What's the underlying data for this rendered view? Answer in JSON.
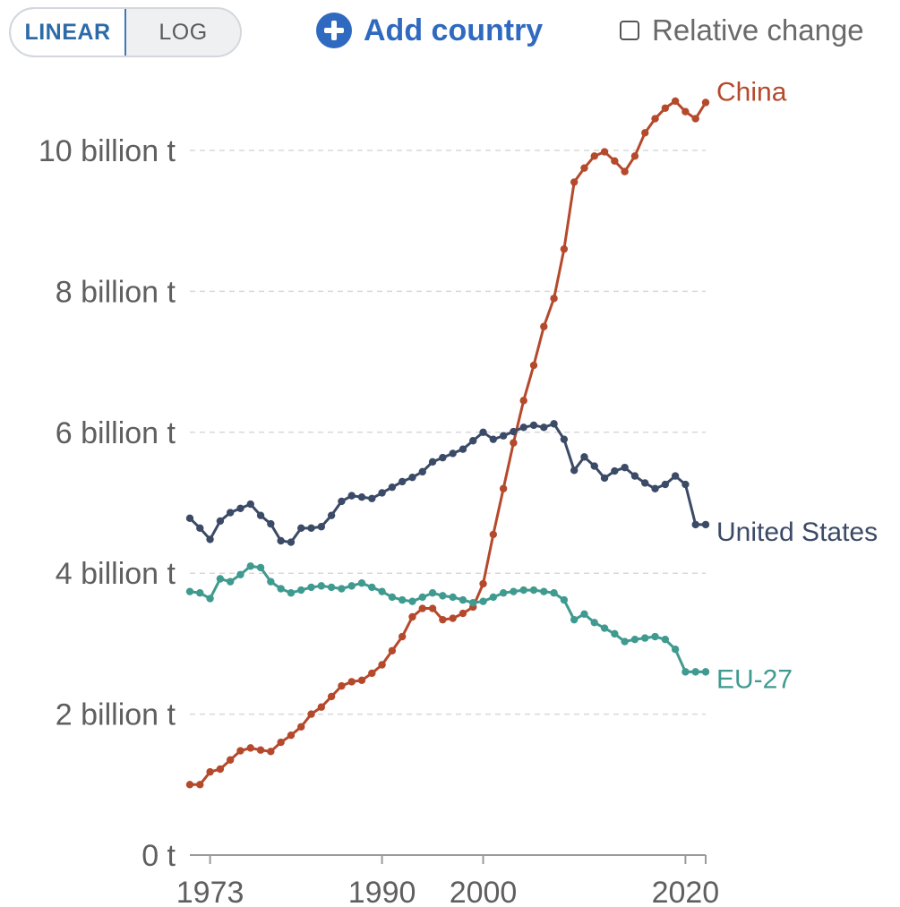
{
  "controls": {
    "linear_label": "LINEAR",
    "log_label": "LOG",
    "add_country_label": "Add country",
    "relative_change_label": "Relative change"
  },
  "colors": {
    "china": "#b5492c",
    "united_states": "#3b4a66",
    "eu27": "#3f9a8f",
    "grid": "#d8d8d8",
    "axis_text": "#5f5f5f",
    "accent": "#2f6ac0"
  },
  "chart_data": {
    "type": "line",
    "title": "",
    "xlabel": "",
    "ylabel": "",
    "scale": "linear",
    "grid": true,
    "xlim": [
      1971,
      2022
    ],
    "ylim": [
      0,
      10000000000
    ],
    "x_ticks": [
      1973,
      1990,
      2000,
      2020
    ],
    "x_tick_labels": [
      "1973",
      "1990",
      "2000",
      "2020"
    ],
    "y_ticks": [
      0,
      2000000000,
      4000000000,
      6000000000,
      8000000000,
      10000000000
    ],
    "y_tick_labels": [
      "0 t",
      "2 billion t",
      "4 billion t",
      "6 billion t",
      "8 billion t",
      "10 billion t"
    ],
    "x": [
      1971,
      1972,
      1973,
      1974,
      1975,
      1976,
      1977,
      1978,
      1979,
      1980,
      1981,
      1982,
      1983,
      1984,
      1985,
      1986,
      1987,
      1988,
      1989,
      1990,
      1991,
      1992,
      1993,
      1994,
      1995,
      1996,
      1997,
      1998,
      1999,
      2000,
      2001,
      2002,
      2003,
      2004,
      2005,
      2006,
      2007,
      2008,
      2009,
      2010,
      2011,
      2012,
      2013,
      2014,
      2015,
      2016,
      2017,
      2018,
      2019,
      2020,
      2021,
      2022
    ],
    "series": [
      {
        "name": "China",
        "color_key": "china",
        "values": [
          1.0,
          1.0,
          1.18,
          1.22,
          1.35,
          1.48,
          1.52,
          1.49,
          1.47,
          1.6,
          1.7,
          1.82,
          2.0,
          2.1,
          2.25,
          2.4,
          2.46,
          2.48,
          2.58,
          2.7,
          2.9,
          3.1,
          3.38,
          3.5,
          3.5,
          3.34,
          3.36,
          3.43,
          3.52,
          3.85,
          4.55,
          5.2,
          5.85,
          6.45,
          6.95,
          7.5,
          7.9,
          8.6,
          9.55,
          9.75,
          9.92,
          9.98,
          9.85,
          9.7,
          9.92,
          10.25,
          10.45,
          10.6,
          10.7,
          10.55,
          10.45,
          10.68
        ]
      },
      {
        "name": "United States",
        "color_key": "united_states",
        "values": [
          4.78,
          4.64,
          4.48,
          4.74,
          4.86,
          4.92,
          4.98,
          4.82,
          4.7,
          4.46,
          4.44,
          4.64,
          4.64,
          4.66,
          4.82,
          5.02,
          5.1,
          5.08,
          5.06,
          5.14,
          5.22,
          5.3,
          5.36,
          5.44,
          5.58,
          5.64,
          5.7,
          5.76,
          5.88,
          6.0,
          5.9,
          5.95,
          6.01,
          6.07,
          6.1,
          6.07,
          6.12,
          5.9,
          5.46,
          5.65,
          5.52,
          5.35,
          5.45,
          5.5,
          5.38,
          5.28,
          5.2,
          5.26,
          5.38,
          5.26,
          4.69,
          4.69
        ]
      },
      {
        "name": "EU-27",
        "color_key": "eu27",
        "values": [
          3.74,
          3.72,
          3.64,
          3.92,
          3.88,
          3.98,
          4.1,
          4.08,
          3.88,
          3.78,
          3.72,
          3.76,
          3.8,
          3.82,
          3.8,
          3.78,
          3.82,
          3.86,
          3.8,
          3.74,
          3.66,
          3.62,
          3.6,
          3.66,
          3.72,
          3.68,
          3.66,
          3.62,
          3.58,
          3.6,
          3.66,
          3.72,
          3.74,
          3.76,
          3.76,
          3.74,
          3.72,
          3.62,
          3.34,
          3.42,
          3.3,
          3.22,
          3.14,
          3.03,
          3.06,
          3.08,
          3.1,
          3.06,
          2.92,
          2.6,
          2.6,
          2.6
        ]
      }
    ]
  }
}
